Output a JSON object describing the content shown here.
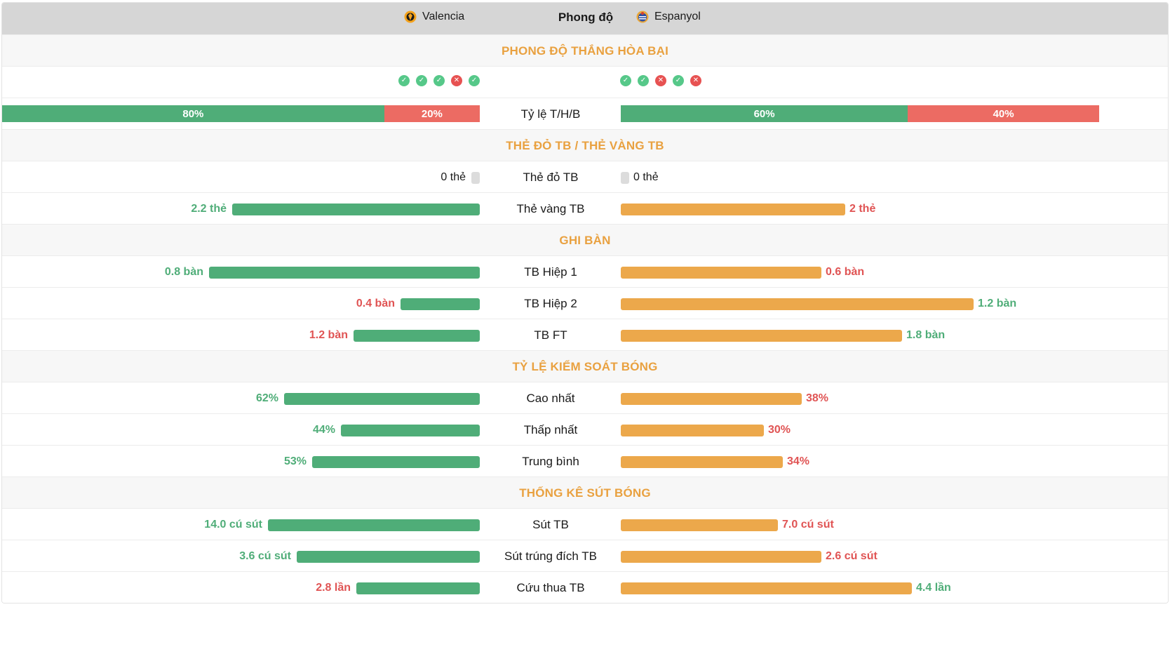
{
  "header": {
    "home_team": "Valencia",
    "title": "Phong độ",
    "away_team": "Espanyol"
  },
  "sections": {
    "form": "PHONG ĐỘ THẮNG HÒA BẠI",
    "cards": "THẺ ĐỎ TB / THẺ VÀNG TB",
    "goals": "GHI BÀN",
    "possession": "TỶ LỆ KIỂM SOÁT BÓNG",
    "shots": "THỐNG KÊ SÚT BÓNG"
  },
  "form": {
    "home": [
      "W",
      "W",
      "W",
      "L",
      "W"
    ],
    "away": [
      "W",
      "W",
      "L",
      "W",
      "L"
    ]
  },
  "ratio": {
    "label": "Tỷ lệ T/H/B",
    "home": [
      {
        "type": "w",
        "pct": 80,
        "text": "80%"
      },
      {
        "type": "l",
        "pct": 20,
        "text": "20%"
      }
    ],
    "away": [
      {
        "type": "w",
        "pct": 60,
        "text": "60%"
      },
      {
        "type": "l",
        "pct": 40,
        "text": "40%"
      }
    ]
  },
  "stats": [
    {
      "label": "Thẻ đỏ TB",
      "home": {
        "text": "0 thẻ",
        "frac": 0,
        "color": "dark"
      },
      "away": {
        "text": "0 thẻ",
        "frac": 0,
        "color": "dark"
      }
    },
    {
      "label": "Thẻ vàng TB",
      "home": {
        "text": "2.2 thẻ",
        "frac": 1.0,
        "color": "green"
      },
      "away": {
        "text": "2 thẻ",
        "frac": 0.47,
        "color": "red"
      }
    },
    {
      "label": "TB Hiệp 1",
      "home": {
        "text": "0.8 bàn",
        "frac": 1.0,
        "color": "green"
      },
      "away": {
        "text": "0.6 bàn",
        "frac": 0.42,
        "color": "red"
      }
    },
    {
      "label": "TB Hiệp 2",
      "home": {
        "text": "0.4 bàn",
        "frac": 0.25,
        "color": "red"
      },
      "away": {
        "text": "1.2 bàn",
        "frac": 0.74,
        "color": "green"
      }
    },
    {
      "label": "TB FT",
      "home": {
        "text": "1.2 bàn",
        "frac": 0.4,
        "color": "red"
      },
      "away": {
        "text": "1.8 bàn",
        "frac": 0.59,
        "color": "green"
      }
    },
    {
      "label": "Cao nhất",
      "home": {
        "text": "62%",
        "frac": 0.62,
        "color": "green"
      },
      "away": {
        "text": "38%",
        "frac": 0.38,
        "color": "red"
      }
    },
    {
      "label": "Thấp nhất",
      "home": {
        "text": "44%",
        "frac": 0.44,
        "color": "green"
      },
      "away": {
        "text": "30%",
        "frac": 0.3,
        "color": "red"
      }
    },
    {
      "label": "Trung bình",
      "home": {
        "text": "53%",
        "frac": 0.53,
        "color": "green"
      },
      "away": {
        "text": "34%",
        "frac": 0.34,
        "color": "red"
      }
    },
    {
      "label": "Sút TB",
      "home": {
        "text": "14.0 cú sút",
        "frac": 0.67,
        "color": "green"
      },
      "away": {
        "text": "7.0 cú sút",
        "frac": 0.33,
        "color": "red"
      }
    },
    {
      "label": "Sút trúng đích TB",
      "home": {
        "text": "3.6 cú sút",
        "frac": 0.58,
        "color": "green"
      },
      "away": {
        "text": "2.6 cú sút",
        "frac": 0.42,
        "color": "red"
      }
    },
    {
      "label": "Cứu thua TB",
      "home": {
        "text": "2.8 lần",
        "frac": 0.39,
        "color": "red"
      },
      "away": {
        "text": "4.4 lần",
        "frac": 0.61,
        "color": "green"
      }
    }
  ],
  "colors": {
    "win": "#4fad78",
    "loss": "#ec6b63",
    "home_bar": "#4fad78",
    "away_bar": "#eca84b",
    "section_title": "#e9a140"
  }
}
